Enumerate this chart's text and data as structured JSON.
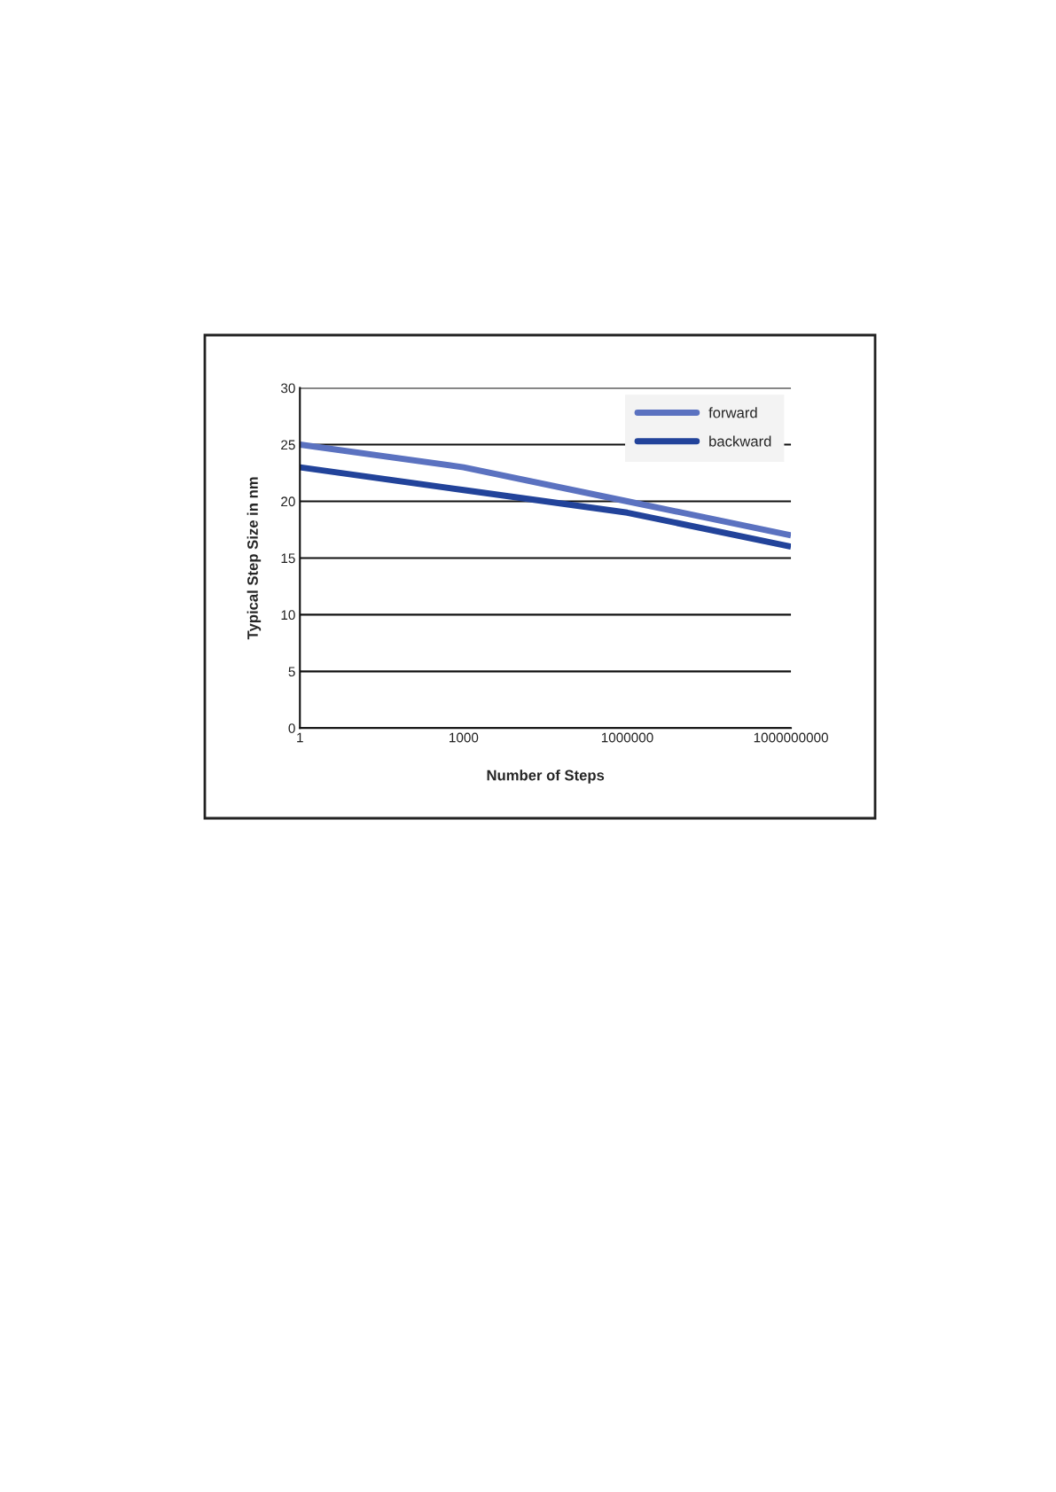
{
  "chart_data": {
    "type": "line",
    "xlabel": "Number of Steps",
    "ylabel": "Typical Step Size in nm",
    "log": "x",
    "x": [
      1,
      1000,
      1000000,
      1000000000
    ],
    "series": [
      {
        "name": "forward",
        "color": "#5b72c0",
        "values": [
          25,
          23,
          20,
          17
        ]
      },
      {
        "name": "backward",
        "color": "#22439a",
        "values": [
          23,
          21,
          19,
          16
        ]
      }
    ],
    "xlim": [
      1,
      1000000000
    ],
    "xticks": [
      1,
      1000,
      1000000,
      1000000000
    ],
    "ylim": [
      0,
      30
    ],
    "yticks": [
      0,
      5,
      10,
      15,
      20,
      25,
      30
    ],
    "grid": "y",
    "legend": "top right",
    "marker": "none",
    "line_style": "solid"
  }
}
